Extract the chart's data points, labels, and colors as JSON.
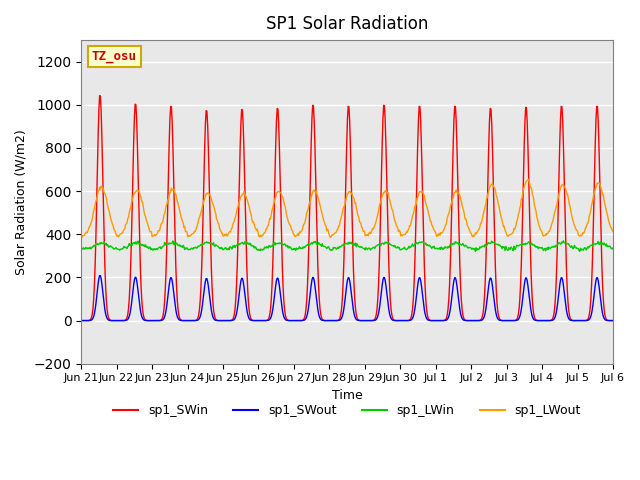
{
  "title": "SP1 Solar Radiation",
  "ylabel": "Solar Radiation (W/m2)",
  "xlabel": "Time",
  "ylim": [
    -200,
    1300
  ],
  "yticks": [
    -200,
    0,
    200,
    400,
    600,
    800,
    1000,
    1200
  ],
  "bg_color": "#e8e8e8",
  "grid_color": "white",
  "tz_label": "TZ_osu",
  "tz_box_facecolor": "#ffffcc",
  "tz_box_edgecolor": "#ccaa00",
  "tz_text_color": "#cc0000",
  "series_colors": {
    "sp1_SWin": "#ff0000",
    "sp1_SWout": "#0000ff",
    "sp1_LWin": "#00cc00",
    "sp1_LWout": "#ff9900"
  },
  "num_days": 16,
  "tick_labels": [
    "Jun 21",
    "Jun 22",
    "Jun 23",
    "Jun 24",
    "Jun 25",
    "Jun 26",
    "Jun 27",
    "Jun 28",
    "Jun 29",
    "Jun 30",
    "Jul 1",
    "Jul 2",
    "Jul 3",
    "Jul 4",
    "Jul 5",
    "Jul 6"
  ],
  "peak_heights_swin": [
    1050,
    1010,
    1000,
    980,
    985,
    990,
    1005,
    1000,
    1005,
    1000,
    1000,
    990,
    995,
    1000,
    1000,
    1000
  ],
  "peak_heights_lwout": [
    620,
    605,
    610,
    590,
    590,
    600,
    600,
    600,
    600,
    600,
    600,
    630,
    650,
    630,
    635,
    640
  ]
}
